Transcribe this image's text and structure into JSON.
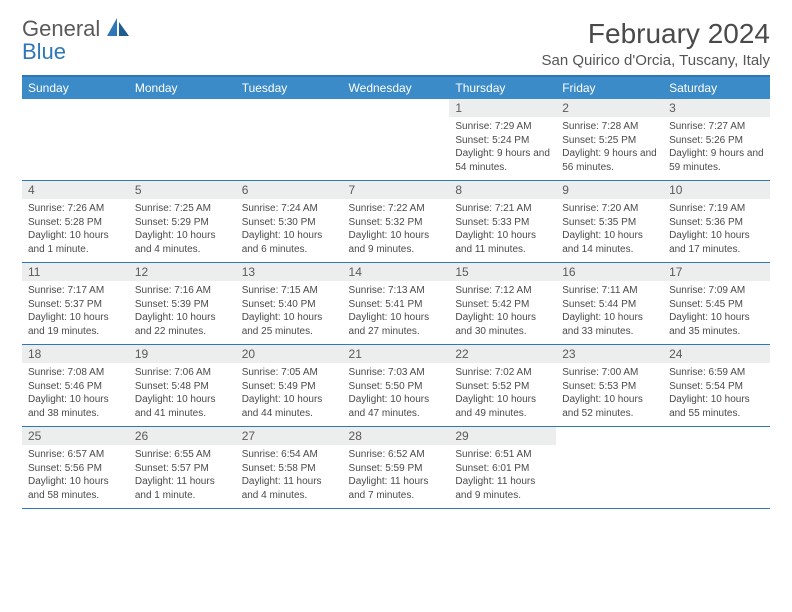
{
  "logo": {
    "text1": "General",
    "text2": "Blue"
  },
  "title": "February 2024",
  "location": "San Quirico d'Orcia, Tuscany, Italy",
  "colors": {
    "header_bar": "#3b8bc9",
    "rule": "#2e77b8",
    "daynum_bg": "#eceded",
    "text": "#4a4a4a"
  },
  "weekdays": [
    "Sunday",
    "Monday",
    "Tuesday",
    "Wednesday",
    "Thursday",
    "Friday",
    "Saturday"
  ],
  "weeks": [
    [
      null,
      null,
      null,
      null,
      {
        "n": "1",
        "sr": "Sunrise: 7:29 AM",
        "ss": "Sunset: 5:24 PM",
        "dl": "Daylight: 9 hours and 54 minutes."
      },
      {
        "n": "2",
        "sr": "Sunrise: 7:28 AM",
        "ss": "Sunset: 5:25 PM",
        "dl": "Daylight: 9 hours and 56 minutes."
      },
      {
        "n": "3",
        "sr": "Sunrise: 7:27 AM",
        "ss": "Sunset: 5:26 PM",
        "dl": "Daylight: 9 hours and 59 minutes."
      }
    ],
    [
      {
        "n": "4",
        "sr": "Sunrise: 7:26 AM",
        "ss": "Sunset: 5:28 PM",
        "dl": "Daylight: 10 hours and 1 minute."
      },
      {
        "n": "5",
        "sr": "Sunrise: 7:25 AM",
        "ss": "Sunset: 5:29 PM",
        "dl": "Daylight: 10 hours and 4 minutes."
      },
      {
        "n": "6",
        "sr": "Sunrise: 7:24 AM",
        "ss": "Sunset: 5:30 PM",
        "dl": "Daylight: 10 hours and 6 minutes."
      },
      {
        "n": "7",
        "sr": "Sunrise: 7:22 AM",
        "ss": "Sunset: 5:32 PM",
        "dl": "Daylight: 10 hours and 9 minutes."
      },
      {
        "n": "8",
        "sr": "Sunrise: 7:21 AM",
        "ss": "Sunset: 5:33 PM",
        "dl": "Daylight: 10 hours and 11 minutes."
      },
      {
        "n": "9",
        "sr": "Sunrise: 7:20 AM",
        "ss": "Sunset: 5:35 PM",
        "dl": "Daylight: 10 hours and 14 minutes."
      },
      {
        "n": "10",
        "sr": "Sunrise: 7:19 AM",
        "ss": "Sunset: 5:36 PM",
        "dl": "Daylight: 10 hours and 17 minutes."
      }
    ],
    [
      {
        "n": "11",
        "sr": "Sunrise: 7:17 AM",
        "ss": "Sunset: 5:37 PM",
        "dl": "Daylight: 10 hours and 19 minutes."
      },
      {
        "n": "12",
        "sr": "Sunrise: 7:16 AM",
        "ss": "Sunset: 5:39 PM",
        "dl": "Daylight: 10 hours and 22 minutes."
      },
      {
        "n": "13",
        "sr": "Sunrise: 7:15 AM",
        "ss": "Sunset: 5:40 PM",
        "dl": "Daylight: 10 hours and 25 minutes."
      },
      {
        "n": "14",
        "sr": "Sunrise: 7:13 AM",
        "ss": "Sunset: 5:41 PM",
        "dl": "Daylight: 10 hours and 27 minutes."
      },
      {
        "n": "15",
        "sr": "Sunrise: 7:12 AM",
        "ss": "Sunset: 5:42 PM",
        "dl": "Daylight: 10 hours and 30 minutes."
      },
      {
        "n": "16",
        "sr": "Sunrise: 7:11 AM",
        "ss": "Sunset: 5:44 PM",
        "dl": "Daylight: 10 hours and 33 minutes."
      },
      {
        "n": "17",
        "sr": "Sunrise: 7:09 AM",
        "ss": "Sunset: 5:45 PM",
        "dl": "Daylight: 10 hours and 35 minutes."
      }
    ],
    [
      {
        "n": "18",
        "sr": "Sunrise: 7:08 AM",
        "ss": "Sunset: 5:46 PM",
        "dl": "Daylight: 10 hours and 38 minutes."
      },
      {
        "n": "19",
        "sr": "Sunrise: 7:06 AM",
        "ss": "Sunset: 5:48 PM",
        "dl": "Daylight: 10 hours and 41 minutes."
      },
      {
        "n": "20",
        "sr": "Sunrise: 7:05 AM",
        "ss": "Sunset: 5:49 PM",
        "dl": "Daylight: 10 hours and 44 minutes."
      },
      {
        "n": "21",
        "sr": "Sunrise: 7:03 AM",
        "ss": "Sunset: 5:50 PM",
        "dl": "Daylight: 10 hours and 47 minutes."
      },
      {
        "n": "22",
        "sr": "Sunrise: 7:02 AM",
        "ss": "Sunset: 5:52 PM",
        "dl": "Daylight: 10 hours and 49 minutes."
      },
      {
        "n": "23",
        "sr": "Sunrise: 7:00 AM",
        "ss": "Sunset: 5:53 PM",
        "dl": "Daylight: 10 hours and 52 minutes."
      },
      {
        "n": "24",
        "sr": "Sunrise: 6:59 AM",
        "ss": "Sunset: 5:54 PM",
        "dl": "Daylight: 10 hours and 55 minutes."
      }
    ],
    [
      {
        "n": "25",
        "sr": "Sunrise: 6:57 AM",
        "ss": "Sunset: 5:56 PM",
        "dl": "Daylight: 10 hours and 58 minutes."
      },
      {
        "n": "26",
        "sr": "Sunrise: 6:55 AM",
        "ss": "Sunset: 5:57 PM",
        "dl": "Daylight: 11 hours and 1 minute."
      },
      {
        "n": "27",
        "sr": "Sunrise: 6:54 AM",
        "ss": "Sunset: 5:58 PM",
        "dl": "Daylight: 11 hours and 4 minutes."
      },
      {
        "n": "28",
        "sr": "Sunrise: 6:52 AM",
        "ss": "Sunset: 5:59 PM",
        "dl": "Daylight: 11 hours and 7 minutes."
      },
      {
        "n": "29",
        "sr": "Sunrise: 6:51 AM",
        "ss": "Sunset: 6:01 PM",
        "dl": "Daylight: 11 hours and 9 minutes."
      },
      null,
      null
    ]
  ]
}
